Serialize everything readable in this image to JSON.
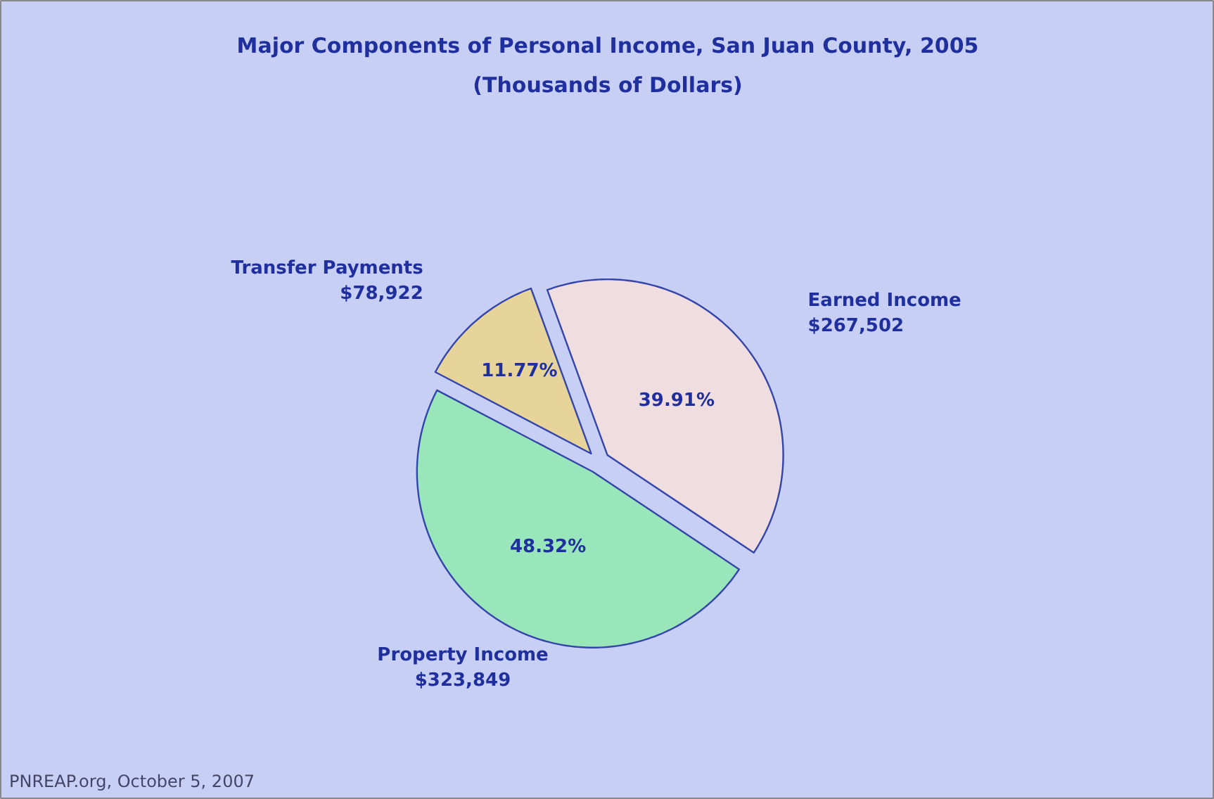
{
  "chart_data": {
    "type": "pie",
    "title": "Major Components of Personal Income, San Juan County, 2005",
    "subtitle": "(Thousands of Dollars)",
    "categories": [
      "Earned Income\n$267,502",
      "Property Income\n$323,849",
      "Transfer Payments\n$78,922"
    ],
    "values": [
      39.91,
      48.32,
      11.77
    ],
    "colors": [
      "#f0dde0",
      "#99e6bb",
      "#e6d49a"
    ],
    "value_labels": [
      "39.91%",
      "48.32%",
      "11.77%"
    ],
    "annotations": [
      "PNREAP.org, October 5, 2007"
    ]
  }
}
